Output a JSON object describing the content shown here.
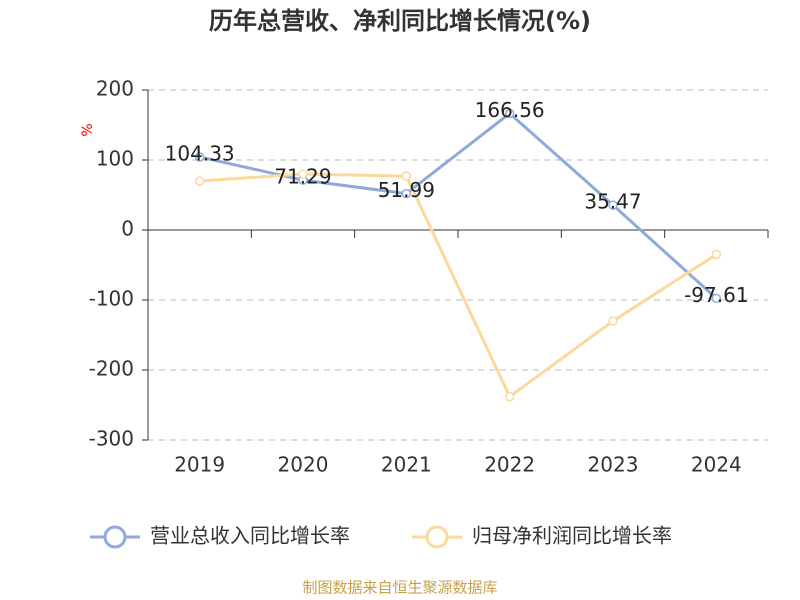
{
  "chart_data": {
    "type": "line",
    "title": "历年总营收、净利同比增长情况(%)",
    "y_label": "%",
    "categories": [
      "2019",
      "2020",
      "2021",
      "2022",
      "2023",
      "2024"
    ],
    "series": [
      {
        "name": "营业总收入同比增长率",
        "color": "#8eaadb",
        "values": [
          104.33,
          71.29,
          51.99,
          166.56,
          35.47,
          -97.61
        ],
        "data_labels": true
      },
      {
        "name": "归母净利润同比增长率",
        "color": "#fdd89b",
        "values": [
          70,
          80,
          77,
          -238,
          -130,
          -35
        ],
        "data_labels": false
      }
    ],
    "ylim": [
      -300,
      200
    ],
    "yticks": [
      -300,
      -200,
      -100,
      0,
      100,
      200
    ],
    "grid": true,
    "legend": "bottom",
    "source": "制图数据来自恒生聚源数据库"
  }
}
